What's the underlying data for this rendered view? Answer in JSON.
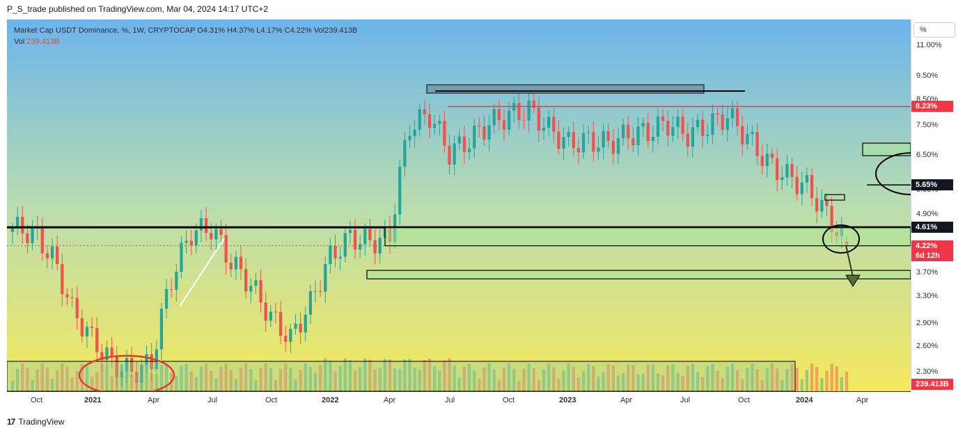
{
  "header": {
    "published": "P_S_trade published on TradingView.com, Mar 04, 2024 14:17 UTC+2"
  },
  "legend": {
    "line1": "Market Cap USDT Dominance, %, 1W, CRYPTOCAP  O4.31%  H4.37%  L4.17%  C4.22%  Vol239.413B",
    "vol_label": "Vol",
    "vol_value": "239.413B"
  },
  "scale_mode": "%",
  "price_ticks": [
    "11.00%",
    "9.50%",
    "8.50%",
    "7.50%",
    "6.50%",
    "5.50%",
    "4.90%",
    "4.20%",
    "3.70%",
    "3.30%",
    "2.90%",
    "2.60%",
    "2.30%"
  ],
  "price_tags": [
    {
      "value": "8.23%",
      "color": "#f23645"
    },
    {
      "value": "5.65%",
      "color": "#131722"
    },
    {
      "value": "4.61%",
      "color": "#131722"
    },
    {
      "value": "4.22%",
      "color": "#f23645"
    },
    {
      "value": "6d 12h",
      "color": "#f23645"
    },
    {
      "value": "239.413B",
      "color": "#f23645"
    }
  ],
  "time_labels": [
    {
      "text": "Oct",
      "bold": false
    },
    {
      "text": "2021",
      "bold": true
    },
    {
      "text": "Apr",
      "bold": false
    },
    {
      "text": "Jul",
      "bold": false
    },
    {
      "text": "Oct",
      "bold": false
    },
    {
      "text": "2022",
      "bold": true
    },
    {
      "text": "Apr",
      "bold": false
    },
    {
      "text": "Jul",
      "bold": false
    },
    {
      "text": "Oct",
      "bold": false
    },
    {
      "text": "2023",
      "bold": true
    },
    {
      "text": "Apr",
      "bold": false
    },
    {
      "text": "Jul",
      "bold": false
    },
    {
      "text": "Oct",
      "bold": false
    },
    {
      "text": "2024",
      "bold": true
    },
    {
      "text": "Apr",
      "bold": false
    }
  ],
  "footer": {
    "brand": "TradingView",
    "logo": "17"
  },
  "colors": {
    "up": "#26a69a",
    "down": "#ef5350",
    "bg_top": "#6cb4ec",
    "bg_bottom": "#f5e85e"
  },
  "chart_data": {
    "type": "candlestick",
    "symbol": "Market Cap USDT Dominance",
    "interval": "1W",
    "ylim": [
      2.1,
      12.5
    ],
    "x_range": [
      "2020-08-31",
      "2024-05-13"
    ],
    "last": {
      "open": 4.31,
      "high": 4.37,
      "low": 4.17,
      "close": 4.22,
      "volume": "239.413B"
    },
    "levels": [
      8.23,
      5.65,
      4.61,
      4.22
    ],
    "series": [
      {
        "name": "ohlc_close",
        "x": [
          "2020-09",
          "2020-10",
          "2020-11",
          "2020-12",
          "2021-01",
          "2021-02",
          "2021-03",
          "2021-04",
          "2021-05",
          "2021-06",
          "2021-07",
          "2021-08",
          "2021-09",
          "2021-10",
          "2021-11",
          "2021-12",
          "2022-01",
          "2022-02",
          "2022-03",
          "2022-04",
          "2022-05",
          "2022-06",
          "2022-07",
          "2022-08",
          "2022-09",
          "2022-10",
          "2022-11",
          "2022-12",
          "2023-01",
          "2023-02",
          "2023-03",
          "2023-04",
          "2023-05",
          "2023-06",
          "2023-07",
          "2023-08",
          "2023-09",
          "2023-10",
          "2023-11",
          "2023-12",
          "2024-01",
          "2024-02",
          "2024-03"
        ],
        "values": [
          4.6,
          4.5,
          4.0,
          3.1,
          2.7,
          2.4,
          2.3,
          2.4,
          3.6,
          4.5,
          4.6,
          3.9,
          3.5,
          3.0,
          2.7,
          3.2,
          4.0,
          4.4,
          4.3,
          4.4,
          7.5,
          7.9,
          6.6,
          7.0,
          7.6,
          7.9,
          8.1,
          7.4,
          6.9,
          7.0,
          6.9,
          7.2,
          7.3,
          7.6,
          7.2,
          7.5,
          7.9,
          7.1,
          6.3,
          5.9,
          5.6,
          4.9,
          4.22
        ]
      }
    ]
  }
}
